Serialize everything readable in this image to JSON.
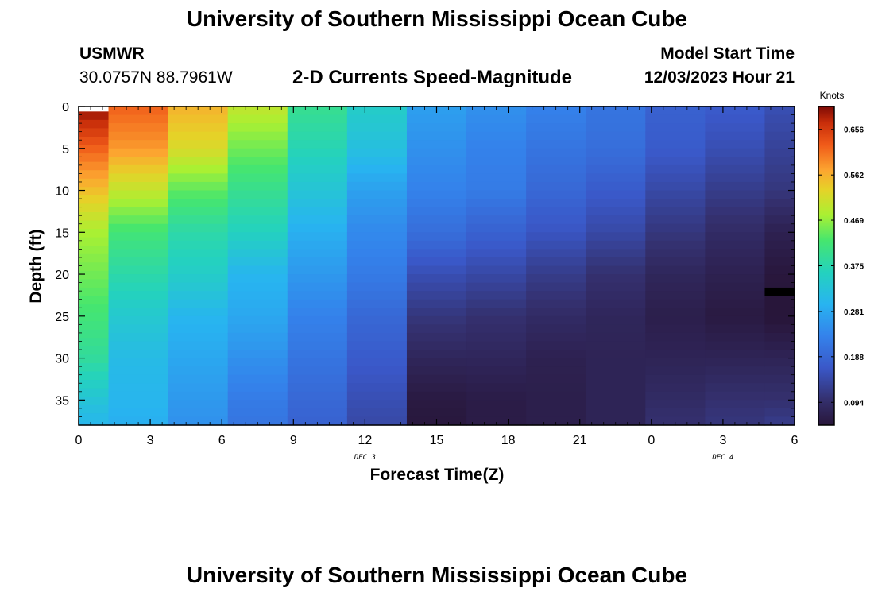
{
  "header": {
    "title": "University of Southern Mississippi Ocean Cube",
    "station": "USMWR",
    "coords": "30.0757N  88.7961W",
    "subtitle": "2-D Currents Speed-Magnitude",
    "model_start_label": "Model Start Time",
    "model_start_value": "12/03/2023 Hour 21"
  },
  "footer": {
    "title": "University of Southern Mississippi Ocean Cube"
  },
  "chart_data": {
    "type": "heatmap",
    "xlabel": "Forecast Time(Z)",
    "ylabel": "Depth (ft)",
    "x_ticks": [
      {
        "h": 0,
        "label": "0"
      },
      {
        "h": 3,
        "label": "3"
      },
      {
        "h": 6,
        "label": "6"
      },
      {
        "h": 9,
        "label": "9"
      },
      {
        "h": 12,
        "label": "12"
      },
      {
        "h": 15,
        "label": "15"
      },
      {
        "h": 18,
        "label": "18"
      },
      {
        "h": 21,
        "label": "21"
      },
      {
        "h": 24,
        "label": "0"
      },
      {
        "h": 27,
        "label": "3"
      },
      {
        "h": 30,
        "label": "6"
      }
    ],
    "date_labels": [
      {
        "h": 12,
        "label": "DEC 3"
      },
      {
        "h": 27,
        "label": "DEC 4"
      }
    ],
    "xlim": [
      0,
      30
    ],
    "y_ticks": [
      0,
      5,
      10,
      15,
      20,
      25,
      30,
      35
    ],
    "ylim": [
      0,
      38
    ],
    "colorbar": {
      "label": "Knots",
      "min": 0.047,
      "max": 0.703,
      "ticks": [
        "0.094",
        "0.188",
        "0.281",
        "0.375",
        "0.469",
        "0.562",
        "0.656"
      ]
    },
    "columns": [
      {
        "start": 0,
        "end": 1.25,
        "top": 0.6,
        "stops": [
          [
            0,
            0.7
          ],
          [
            5,
            0.62
          ],
          [
            10,
            0.55
          ],
          [
            15,
            0.48
          ],
          [
            20,
            0.45
          ],
          [
            25,
            0.42
          ],
          [
            30,
            0.39
          ],
          [
            35,
            0.33
          ],
          [
            38,
            0.3
          ]
        ]
      },
      {
        "start": 1.25,
        "end": 3.75,
        "top": 0,
        "stops": [
          [
            0,
            0.62
          ],
          [
            5,
            0.58
          ],
          [
            10,
            0.5
          ],
          [
            15,
            0.42
          ],
          [
            20,
            0.38
          ],
          [
            25,
            0.34
          ],
          [
            30,
            0.31
          ],
          [
            35,
            0.3
          ],
          [
            38,
            0.29
          ]
        ]
      },
      {
        "start": 3.75,
        "end": 6.25,
        "top": 0,
        "stops": [
          [
            0,
            0.56
          ],
          [
            5,
            0.52
          ],
          [
            10,
            0.44
          ],
          [
            15,
            0.38
          ],
          [
            20,
            0.35
          ],
          [
            25,
            0.3
          ],
          [
            30,
            0.28
          ],
          [
            35,
            0.26
          ],
          [
            38,
            0.25
          ]
        ]
      },
      {
        "start": 6.25,
        "end": 8.75,
        "top": 0,
        "stops": [
          [
            0,
            0.5
          ],
          [
            5,
            0.45
          ],
          [
            10,
            0.4
          ],
          [
            15,
            0.36
          ],
          [
            20,
            0.3
          ],
          [
            25,
            0.28
          ],
          [
            30,
            0.25
          ],
          [
            35,
            0.22
          ],
          [
            38,
            0.21
          ]
        ]
      },
      {
        "start": 8.75,
        "end": 11.25,
        "top": 0,
        "stops": [
          [
            0,
            0.4
          ],
          [
            5,
            0.37
          ],
          [
            10,
            0.33
          ],
          [
            15,
            0.29
          ],
          [
            20,
            0.26
          ],
          [
            25,
            0.23
          ],
          [
            30,
            0.21
          ],
          [
            35,
            0.19
          ],
          [
            38,
            0.18
          ]
        ]
      },
      {
        "start": 11.25,
        "end": 13.75,
        "top": 0,
        "stops": [
          [
            0,
            0.35
          ],
          [
            5,
            0.32
          ],
          [
            10,
            0.27
          ],
          [
            15,
            0.24
          ],
          [
            20,
            0.22
          ],
          [
            25,
            0.19
          ],
          [
            30,
            0.17
          ],
          [
            35,
            0.15
          ],
          [
            38,
            0.14
          ]
        ]
      },
      {
        "start": 13.75,
        "end": 16.25,
        "top": 0,
        "stops": [
          [
            0,
            0.27
          ],
          [
            5,
            0.25
          ],
          [
            10,
            0.23
          ],
          [
            15,
            0.2
          ],
          [
            20,
            0.15
          ],
          [
            25,
            0.11
          ],
          [
            30,
            0.08
          ],
          [
            35,
            0.055
          ],
          [
            38,
            0.05
          ]
        ]
      },
      {
        "start": 16.25,
        "end": 18.75,
        "top": 0,
        "stops": [
          [
            0,
            0.25
          ],
          [
            5,
            0.23
          ],
          [
            10,
            0.22
          ],
          [
            15,
            0.18
          ],
          [
            20,
            0.14
          ],
          [
            25,
            0.1
          ],
          [
            30,
            0.08
          ],
          [
            35,
            0.06
          ],
          [
            38,
            0.06
          ]
        ]
      },
      {
        "start": 18.75,
        "end": 21.25,
        "top": 0,
        "stops": [
          [
            0,
            0.23
          ],
          [
            5,
            0.21
          ],
          [
            10,
            0.19
          ],
          [
            15,
            0.16
          ],
          [
            20,
            0.12
          ],
          [
            25,
            0.09
          ],
          [
            30,
            0.07
          ],
          [
            35,
            0.065
          ],
          [
            38,
            0.065
          ]
        ]
      },
      {
        "start": 21.25,
        "end": 23.75,
        "top": 0,
        "stops": [
          [
            0,
            0.21
          ],
          [
            5,
            0.2
          ],
          [
            10,
            0.17
          ],
          [
            15,
            0.14
          ],
          [
            20,
            0.1
          ],
          [
            25,
            0.08
          ],
          [
            30,
            0.075
          ],
          [
            35,
            0.075
          ],
          [
            38,
            0.075
          ]
        ]
      },
      {
        "start": 23.75,
        "end": 26.25,
        "top": 0,
        "stops": [
          [
            0,
            0.18
          ],
          [
            5,
            0.17
          ],
          [
            10,
            0.14
          ],
          [
            15,
            0.11
          ],
          [
            20,
            0.08
          ],
          [
            25,
            0.065
          ],
          [
            30,
            0.075
          ],
          [
            35,
            0.09
          ],
          [
            38,
            0.1
          ]
        ]
      },
      {
        "start": 26.25,
        "end": 28.75,
        "top": 0,
        "stops": [
          [
            0,
            0.17
          ],
          [
            5,
            0.15
          ],
          [
            10,
            0.12
          ],
          [
            15,
            0.09
          ],
          [
            20,
            0.07
          ],
          [
            25,
            0.055
          ],
          [
            30,
            0.075
          ],
          [
            35,
            0.1
          ],
          [
            38,
            0.11
          ]
        ]
      },
      {
        "start": 28.75,
        "end": 30,
        "top": 0,
        "stops": [
          [
            0,
            0.15
          ],
          [
            5,
            0.13
          ],
          [
            10,
            0.11
          ],
          [
            15,
            0.07
          ],
          [
            20,
            0.05
          ],
          [
            25,
            0.045
          ],
          [
            30,
            0.075
          ],
          [
            35,
            0.1
          ],
          [
            38,
            0.12
          ]
        ]
      }
    ],
    "missing_cells": [
      {
        "x0": 28.75,
        "x1": 30,
        "y0": 21.6,
        "y1": 22.6
      }
    ]
  }
}
